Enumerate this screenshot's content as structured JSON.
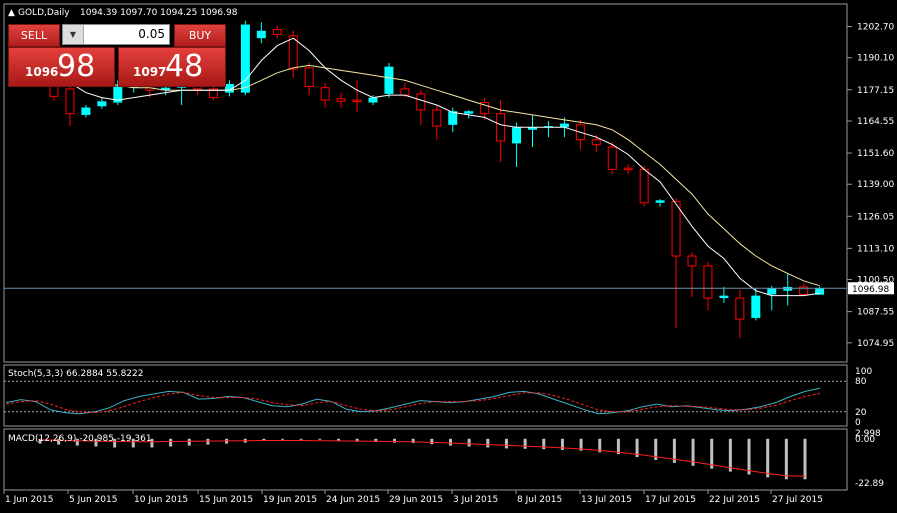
{
  "header": {
    "symbol": "GOLD,Daily",
    "ohlc": "1094.39 1097.70 1094.25 1096.98"
  },
  "trade_panel": {
    "sell_label": "SELL",
    "buy_label": "BUY",
    "lot_arrow": "▼",
    "lot": "0.05",
    "sell_price_small": "1096",
    "sell_price_big": "98",
    "buy_price_small": "1097",
    "buy_price_big": "48"
  },
  "colors": {
    "background": "#000000",
    "bull_candle": "#00ffff",
    "bear_candle": "#ff0000",
    "fast_ma": "#ffffff",
    "slow_ma": "#f5e6a0",
    "bid_line": "#6f8fb0",
    "stoch_main": "#3fb0c8",
    "stoch_signal": "#ff2020",
    "macd_hist": "#c0c0c0",
    "macd_signal": "#ff2020"
  },
  "chart_data": [
    {
      "type": "candlestick",
      "name": "GOLD Daily",
      "price_axis": [
        "1202.70",
        "1190.10",
        "1177.15",
        "1164.55",
        "1151.60",
        "1139.00",
        "1126.05",
        "1113.10",
        "1100.50",
        "1087.55",
        "1074.95"
      ],
      "current_price_label": "1096.98",
      "ylim": [
        1068,
        1211
      ],
      "candles": [
        {
          "o": 1180.0,
          "h": 1182.5,
          "l": 1172.8,
          "c": 1174.5
        },
        {
          "o": 1177.5,
          "h": 1179.0,
          "l": 1162.5,
          "c": 1167.5
        },
        {
          "o": 1167.0,
          "h": 1171.0,
          "l": 1166.0,
          "c": 1170.0
        },
        {
          "o": 1170.5,
          "h": 1174.0,
          "l": 1169.5,
          "c": 1172.5
        },
        {
          "o": 1172.0,
          "h": 1181.0,
          "l": 1171.0,
          "c": 1178.5
        },
        {
          "o": 1178.0,
          "h": 1182.0,
          "l": 1176.0,
          "c": 1179.5
        },
        {
          "o": 1178.5,
          "h": 1181.0,
          "l": 1174.0,
          "c": 1177.0
        },
        {
          "o": 1177.0,
          "h": 1180.0,
          "l": 1175.0,
          "c": 1178.0
        },
        {
          "o": 1178.0,
          "h": 1181.0,
          "l": 1171.0,
          "c": 1179.5
        },
        {
          "o": 1178.5,
          "h": 1180.0,
          "l": 1175.0,
          "c": 1177.5
        },
        {
          "o": 1177.5,
          "h": 1180.0,
          "l": 1173.0,
          "c": 1174.0
        },
        {
          "o": 1176.0,
          "h": 1181.0,
          "l": 1174.5,
          "c": 1179.5
        },
        {
          "o": 1176.0,
          "h": 1205.0,
          "l": 1175.0,
          "c": 1203.5
        },
        {
          "o": 1198.0,
          "h": 1204.5,
          "l": 1196.0,
          "c": 1201.0
        },
        {
          "o": 1201.5,
          "h": 1203.0,
          "l": 1198.0,
          "c": 1199.5
        },
        {
          "o": 1199.0,
          "h": 1201.0,
          "l": 1182.0,
          "c": 1185.5
        },
        {
          "o": 1186.0,
          "h": 1188.0,
          "l": 1175.0,
          "c": 1178.5
        },
        {
          "o": 1178.0,
          "h": 1180.0,
          "l": 1170.0,
          "c": 1173.0
        },
        {
          "o": 1173.5,
          "h": 1176.0,
          "l": 1170.0,
          "c": 1172.5
        },
        {
          "o": 1173.0,
          "h": 1181.0,
          "l": 1168.0,
          "c": 1172.5
        },
        {
          "o": 1172.0,
          "h": 1175.0,
          "l": 1171.0,
          "c": 1174.0
        },
        {
          "o": 1175.5,
          "h": 1188.0,
          "l": 1174.0,
          "c": 1186.5
        },
        {
          "o": 1177.5,
          "h": 1180.0,
          "l": 1174.0,
          "c": 1175.0
        },
        {
          "o": 1175.5,
          "h": 1177.0,
          "l": 1163.0,
          "c": 1169.0
        },
        {
          "o": 1169.0,
          "h": 1171.0,
          "l": 1157.0,
          "c": 1162.5
        },
        {
          "o": 1163.0,
          "h": 1170.0,
          "l": 1160.0,
          "c": 1168.5
        },
        {
          "o": 1167.5,
          "h": 1169.0,
          "l": 1165.5,
          "c": 1168.5
        },
        {
          "o": 1172.0,
          "h": 1174.0,
          "l": 1165.0,
          "c": 1167.5
        },
        {
          "o": 1167.5,
          "h": 1173.0,
          "l": 1148.0,
          "c": 1156.5
        },
        {
          "o": 1155.5,
          "h": 1164.0,
          "l": 1146.0,
          "c": 1162.0
        },
        {
          "o": 1161.0,
          "h": 1167.0,
          "l": 1154.0,
          "c": 1162.0
        },
        {
          "o": 1162.0,
          "h": 1164.5,
          "l": 1158.0,
          "c": 1162.5
        },
        {
          "o": 1162.0,
          "h": 1166.0,
          "l": 1158.0,
          "c": 1163.5
        },
        {
          "o": 1163.0,
          "h": 1165.0,
          "l": 1153.0,
          "c": 1157.0
        },
        {
          "o": 1157.0,
          "h": 1159.0,
          "l": 1152.0,
          "c": 1155.0
        },
        {
          "o": 1154.0,
          "h": 1156.0,
          "l": 1143.0,
          "c": 1145.0
        },
        {
          "o": 1145.5,
          "h": 1147.0,
          "l": 1143.0,
          "c": 1145.0
        },
        {
          "o": 1145.0,
          "h": 1146.5,
          "l": 1130.0,
          "c": 1131.5
        },
        {
          "o": 1131.5,
          "h": 1133.0,
          "l": 1130.0,
          "c": 1132.5
        },
        {
          "o": 1132.0,
          "h": 1133.5,
          "l": 1081.0,
          "c": 1110.0
        },
        {
          "o": 1110.0,
          "h": 1111.5,
          "l": 1093.5,
          "c": 1106.0
        },
        {
          "o": 1106.0,
          "h": 1107.5,
          "l": 1088.0,
          "c": 1093.0
        },
        {
          "o": 1093.0,
          "h": 1097.5,
          "l": 1091.0,
          "c": 1094.0
        },
        {
          "o": 1093.0,
          "h": 1096.5,
          "l": 1077.0,
          "c": 1084.5
        },
        {
          "o": 1085.0,
          "h": 1097.0,
          "l": 1084.0,
          "c": 1094.0
        },
        {
          "o": 1094.5,
          "h": 1098.0,
          "l": 1088.0,
          "c": 1097.0
        },
        {
          "o": 1096.0,
          "h": 1103.0,
          "l": 1090.0,
          "c": 1097.5
        },
        {
          "o": 1097.5,
          "h": 1099.0,
          "l": 1094.0,
          "c": 1094.5
        },
        {
          "o": 1094.4,
          "h": 1097.7,
          "l": 1094.25,
          "c": 1096.98
        }
      ],
      "ma_fast": [
        1184,
        1180,
        1176,
        1174,
        1173,
        1174,
        1175,
        1176,
        1177,
        1177,
        1177,
        1177,
        1181,
        1189,
        1195,
        1198,
        1193,
        1186,
        1181,
        1177,
        1174,
        1175,
        1175,
        1173,
        1171,
        1168,
        1167,
        1166,
        1163,
        1162,
        1162,
        1162,
        1162,
        1160,
        1158,
        1155,
        1151,
        1145,
        1140,
        1131,
        1122,
        1114,
        1109,
        1101,
        1096,
        1094,
        1094,
        1094,
        1095
      ],
      "ma_slow": [
        1183,
        1182,
        1181,
        1180,
        1179,
        1178,
        1178,
        1177,
        1177,
        1177,
        1177,
        1177,
        1178,
        1181,
        1184,
        1186,
        1187,
        1186,
        1185,
        1184,
        1183,
        1182,
        1181,
        1179,
        1177,
        1175,
        1173,
        1171,
        1169,
        1168,
        1167,
        1166,
        1165,
        1164,
        1163,
        1161,
        1157,
        1152,
        1147,
        1141,
        1135,
        1127,
        1121,
        1115,
        1110,
        1106,
        1103,
        1100,
        1098
      ]
    },
    {
      "type": "line",
      "name": "Stoch(5,3,3) 66.2884 55.8222",
      "levels": [
        "100",
        "80",
        "20",
        "0"
      ],
      "ylim": [
        0,
        100
      ],
      "series": [
        {
          "name": "main",
          "values": [
            38,
            44,
            40,
            24,
            18,
            16,
            20,
            28,
            42,
            50,
            55,
            60,
            58,
            45,
            46,
            50,
            48,
            40,
            32,
            30,
            35,
            45,
            40,
            25,
            20,
            22,
            28,
            35,
            42,
            40,
            38,
            40,
            45,
            50,
            58,
            60,
            55,
            45,
            35,
            25,
            16,
            18,
            22,
            30,
            35,
            30,
            32,
            28,
            24,
            22,
            25,
            30,
            38,
            50,
            60,
            66
          ]
        },
        {
          "name": "signal",
          "values": [
            35,
            40,
            42,
            35,
            25,
            20,
            18,
            22,
            30,
            40,
            48,
            55,
            58,
            52,
            48,
            48,
            48,
            45,
            38,
            34,
            32,
            38,
            40,
            32,
            25,
            22,
            24,
            30,
            36,
            40,
            40,
            40,
            42,
            46,
            52,
            57,
            57,
            52,
            44,
            34,
            24,
            20,
            20,
            25,
            30,
            32,
            31,
            30,
            27,
            24,
            24,
            27,
            33,
            42,
            50,
            56
          ]
        }
      ]
    },
    {
      "type": "bar",
      "name": "MACD(12,26,9) -20.985 -19.361",
      "axis_labels": [
        "2.998",
        "0.00",
        "-22.89"
      ],
      "ylim": [
        -25,
        3
      ],
      "values": [
        -2.5,
        -3,
        -3.5,
        -4,
        -4.5,
        -4.5,
        -4.5,
        -4,
        -3.5,
        -3,
        -2.5,
        -2,
        -1,
        -0.5,
        -0.3,
        -0.4,
        -1,
        -1.5,
        -1.7,
        -2,
        -2.2,
        -2.8,
        -3.5,
        -4,
        -4.5,
        -5,
        -5.2,
        -5.4,
        -5.8,
        -6.2,
        -7,
        -8,
        -9.5,
        -11,
        -12.5,
        -14,
        -15.5,
        -17,
        -18.5,
        -20,
        -21,
        -21
      ],
      "signal": [
        -0.5,
        -0.8,
        -1,
        -1.2,
        -1.4,
        -1.5,
        -1.5,
        -1.4,
        -1.3,
        -1.2,
        -1.1,
        -1,
        -0.9,
        -0.9,
        -0.9,
        -1,
        -1.1,
        -1.2,
        -1.3,
        -1.4,
        -1.6,
        -1.9,
        -2.2,
        -2.6,
        -3,
        -3.4,
        -3.8,
        -4.2,
        -4.7,
        -5.3,
        -6,
        -7,
        -8,
        -9.3,
        -10.6,
        -12,
        -13.5,
        -15,
        -16.5,
        -18,
        -19.2,
        -19.4
      ]
    }
  ],
  "x_axis_labels": [
    "1 Jun 2015",
    "5 Jun 2015",
    "10 Jun 2015",
    "15 Jun 2015",
    "19 Jun 2015",
    "24 Jun 2015",
    "29 Jun 2015",
    "3 Jul 2015",
    "8 Jul 2015",
    "13 Jul 2015",
    "17 Jul 2015",
    "22 Jul 2015",
    "27 Jul 2015"
  ]
}
